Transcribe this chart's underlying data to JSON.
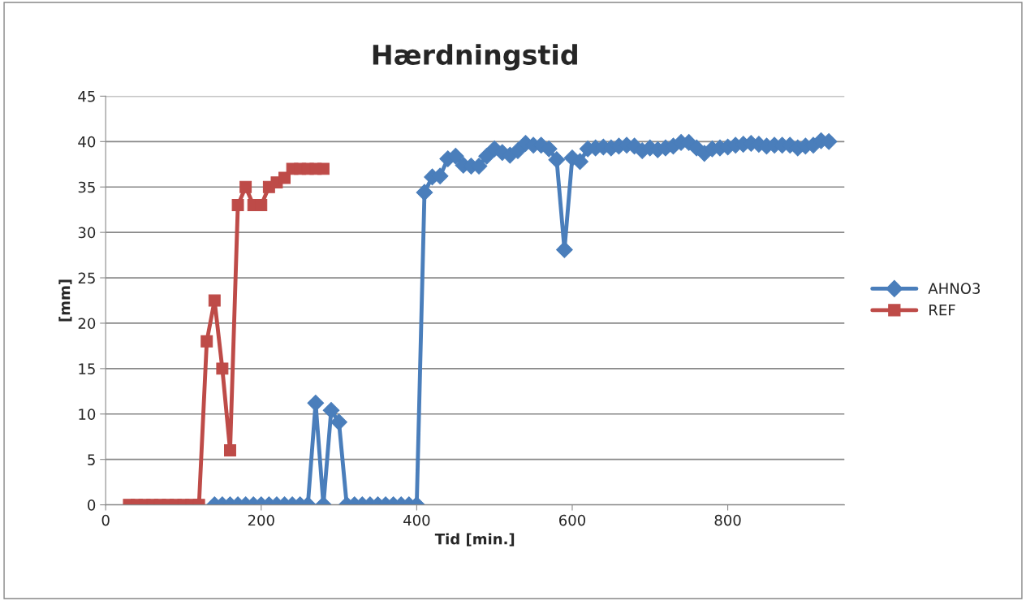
{
  "chart_data": {
    "type": "line",
    "title": "Hærdningstid",
    "xlabel": "Tid [min.]",
    "ylabel": "[mm]",
    "xlim": [
      0,
      950
    ],
    "xticks": [
      0,
      200,
      400,
      600,
      800
    ],
    "ylim": [
      0,
      45
    ],
    "yticks": [
      0,
      5,
      10,
      15,
      20,
      25,
      30,
      35,
      40,
      45
    ],
    "grid": "y",
    "legend": "right",
    "series": [
      {
        "name": "AHNO3",
        "color": "#4a7ebb",
        "marker": "diamond",
        "x": [
          140,
          150,
          160,
          170,
          180,
          190,
          200,
          210,
          220,
          230,
          240,
          250,
          260,
          270,
          280,
          290,
          300,
          310,
          320,
          330,
          340,
          350,
          360,
          370,
          380,
          390,
          400,
          410,
          420,
          430,
          440,
          450,
          460,
          470,
          480,
          490,
          500,
          510,
          520,
          530,
          540,
          550,
          560,
          570,
          580,
          590,
          600,
          610,
          620,
          630,
          640,
          650,
          660,
          670,
          680,
          690,
          700,
          710,
          720,
          730,
          740,
          750,
          760,
          770,
          780,
          790,
          800,
          810,
          820,
          830,
          840,
          850,
          860,
          870,
          880,
          890,
          900,
          910,
          920,
          930
        ],
        "values": [
          0,
          0,
          0,
          0,
          0,
          0,
          0,
          0,
          0,
          0,
          0,
          0,
          0,
          11.2,
          0,
          10.4,
          9.1,
          0,
          0,
          0,
          0,
          0,
          0,
          0,
          0,
          0,
          0,
          34.4,
          36.1,
          36.2,
          38.1,
          38.4,
          37.4,
          37.3,
          37.3,
          38.4,
          39.2,
          38.8,
          38.5,
          39.0,
          39.8,
          39.6,
          39.6,
          39.2,
          38.0,
          28.1,
          38.2,
          37.8,
          39.2,
          39.3,
          39.4,
          39.3,
          39.5,
          39.6,
          39.5,
          39.0,
          39.3,
          39.1,
          39.3,
          39.5,
          39.9,
          39.9,
          39.3,
          38.7,
          39.2,
          39.3,
          39.4,
          39.6,
          39.7,
          39.8,
          39.7,
          39.5,
          39.6,
          39.6,
          39.6,
          39.3,
          39.5,
          39.6,
          40.1,
          40.0
        ]
      },
      {
        "name": "REF",
        "color": "#be4b48",
        "marker": "square",
        "x": [
          30,
          40,
          50,
          60,
          70,
          80,
          90,
          100,
          110,
          120,
          130,
          140,
          150,
          160,
          170,
          180,
          190,
          200,
          210,
          220,
          230,
          240,
          250,
          260,
          270,
          280
        ],
        "values": [
          0,
          0,
          0,
          0,
          0,
          0,
          0,
          0,
          0,
          0,
          18,
          22.5,
          15,
          6,
          33,
          35,
          33,
          33,
          35,
          35.5,
          36,
          37,
          37,
          37,
          37,
          37
        ]
      }
    ]
  }
}
